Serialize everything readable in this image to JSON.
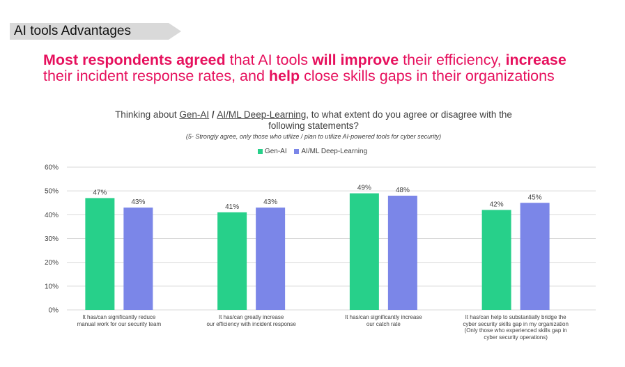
{
  "section_tag": "AI tools Advantages",
  "headline": {
    "p1": "Most respondents agreed",
    "p2": " that AI tools ",
    "p3": "will improve",
    "p4": " their efficiency, ",
    "p5": "increase",
    "p6": "their incident response rates, and ",
    "p7": "help",
    "p8": " close skills gaps in their organizations"
  },
  "chart_title": {
    "prefix": "Thinking about ",
    "genai": "Gen-AI",
    "slash": " / ",
    "aiml": "AI/ML Deep-Learning",
    "suffix": ", to what extent do you agree or disagree with the",
    "line2": "following statements?"
  },
  "chart_subtitle": "(5- Strongly agree, only those who utilize / plan to utilize AI-powered tools for cyber security)",
  "colors": {
    "genai": "#27d08a",
    "aiml": "#7b86e8",
    "grid": "#d9d9d9"
  },
  "chart_data": {
    "type": "bar",
    "ylim": [
      0,
      60
    ],
    "yticks": [
      0,
      10,
      20,
      30,
      40,
      50,
      60
    ],
    "ytick_labels": [
      "0%",
      "10%",
      "20%",
      "30%",
      "40%",
      "50%",
      "60%"
    ],
    "categories": [
      "It has/can significantly reduce\nmanual work for our security team",
      "It has/can greatly increase\nour efficiency with incident response",
      "It has/can significantly increase\nour catch rate",
      "It has/can help to substantially bridge the\ncyber security skills gap in my organization\n(Only those who experienced skills gap in\ncyber security operations)"
    ],
    "series": [
      {
        "name": "Gen-AI",
        "values": [
          47,
          41,
          49,
          42
        ],
        "labels": [
          "47%",
          "41%",
          "49%",
          "42%"
        ]
      },
      {
        "name": "AI/ML Deep-Learning",
        "values": [
          43,
          43,
          48,
          45
        ],
        "labels": [
          "43%",
          "43%",
          "48%",
          "45%"
        ]
      }
    ],
    "legend_position": "top-center"
  }
}
